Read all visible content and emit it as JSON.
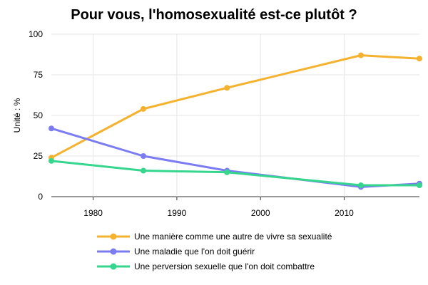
{
  "chart_data": {
    "type": "line",
    "title": "Pour vous, l'homosexualité est-ce plutôt ?",
    "xlabel": "",
    "ylabel": "Unité : %",
    "xlim": [
      1975,
      2019
    ],
    "ylim": [
      0,
      100
    ],
    "xticks": [
      1980,
      1990,
      2000,
      2010
    ],
    "yticks": [
      0,
      25,
      50,
      75,
      100
    ],
    "grid": true,
    "legend_position": "bottom",
    "x": [
      1975,
      1986,
      1996,
      2012,
      2019
    ],
    "series": [
      {
        "name": "Une manière comme une autre de vivre sa sexualité",
        "color": "#F5B22F",
        "values": [
          24,
          54,
          67,
          87,
          85
        ]
      },
      {
        "name": "Une maladie que l'on doit guérir",
        "color": "#7C7CF2",
        "values": [
          42,
          25,
          16,
          6,
          8
        ]
      },
      {
        "name": "Une perversion sexuelle que l'on doit combattre",
        "color": "#36D68E",
        "values": [
          22,
          16,
          15,
          7,
          7
        ]
      }
    ]
  }
}
